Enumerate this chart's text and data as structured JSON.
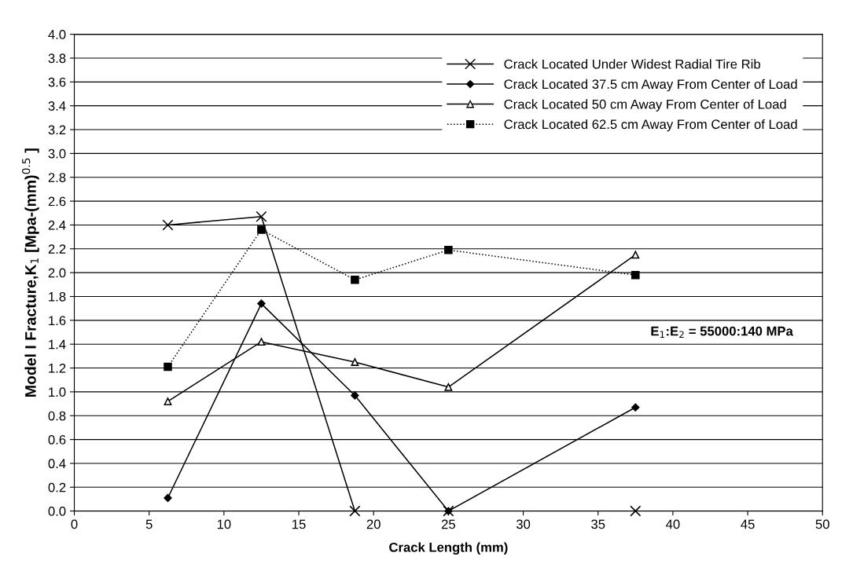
{
  "chart_data": {
    "type": "line",
    "xlabel": "Crack Length (mm)",
    "ylabel": "Model I Fracture,K$_{1}$ [Mpa-(mm)$^{0.5}$ ]",
    "x": [
      6.25,
      12.5,
      18.75,
      25,
      37.5
    ],
    "series": [
      {
        "name": "Crack Located Under Widest Radial Tire Rib",
        "color": "#000000",
        "marker": "cross",
        "line_style": "solid",
        "values": [
          2.4,
          2.47,
          0.0,
          0.0,
          0.0
        ]
      },
      {
        "name": "Crack Located 37.5 cm Away From Center of Load",
        "color": "#000000",
        "marker": "diamond",
        "line_style": "solid",
        "values": [
          0.11,
          1.74,
          0.97,
          0.0,
          0.87
        ]
      },
      {
        "name": "Crack Located 50 cm Away From Center of Load",
        "color": "#000000",
        "marker": "triangle",
        "line_style": "solid",
        "values": [
          0.92,
          1.42,
          1.25,
          1.04,
          2.15
        ]
      },
      {
        "name": "Crack Located 62.5 cm Away From Center of Load",
        "color": "#000000",
        "marker": "square",
        "line_style": "dotted",
        "values": [
          1.21,
          2.36,
          1.94,
          2.19,
          1.98
        ]
      }
    ],
    "xlim": [
      0,
      50
    ],
    "xticks": [
      0,
      5,
      10,
      15,
      20,
      25,
      30,
      35,
      40,
      45,
      50
    ],
    "ylim": [
      0,
      4.0
    ],
    "yticks": [
      {
        "value": 0,
        "label": "0.0"
      },
      {
        "value": 0.2,
        "label": "0.2"
      },
      {
        "value": 0.4,
        "label": "0.4"
      },
      {
        "value": 0.6,
        "label": "0.6"
      },
      {
        "value": 0.8,
        "label": "0.8"
      },
      {
        "value": 1.0,
        "label": "1.0"
      },
      {
        "value": 1.2,
        "label": "1.2"
      },
      {
        "value": 1.4,
        "label": "1.4"
      },
      {
        "value": 1.6,
        "label": "1.6"
      },
      {
        "value": 1.8,
        "label": "1.8"
      },
      {
        "value": 2.0,
        "label": "2.0"
      },
      {
        "value": 2.2,
        "label": "2.2"
      },
      {
        "value": 2.4,
        "label": "2.4"
      },
      {
        "value": 2.6,
        "label": "2.6"
      },
      {
        "value": 2.8,
        "label": "2.8"
      },
      {
        "value": 3.0,
        "label": "3.0"
      },
      {
        "value": 3.2,
        "label": "3.2"
      },
      {
        "value": 3.4,
        "label": "3.4"
      },
      {
        "value": 3.6,
        "label": "3.6"
      },
      {
        "value": 3.8,
        "label": "3.8"
      },
      {
        "value": 4.0,
        "label": "4.0"
      }
    ],
    "grid": "y",
    "legend": "top right",
    "annotations": [
      "E$_{1}$:E$_{2}$ = 55000:140 MPa"
    ]
  }
}
